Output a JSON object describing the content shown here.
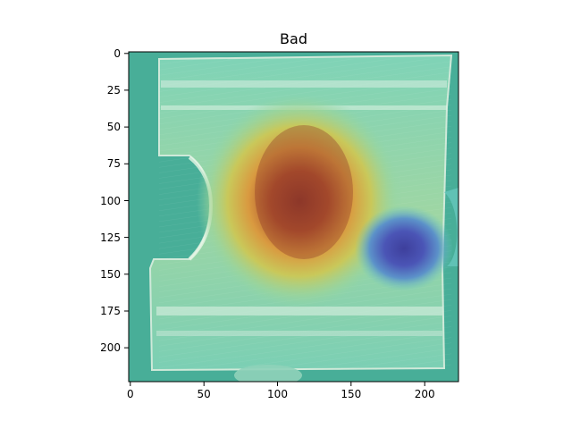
{
  "figure": {
    "title": "Bad",
    "x_ticks": [
      "0",
      "50",
      "100",
      "150",
      "200"
    ],
    "y_ticks": [
      "0",
      "25",
      "50",
      "75",
      "100",
      "125",
      "150",
      "175",
      "200"
    ],
    "image_extent": [
      0,
      224,
      224,
      0
    ],
    "overlay": "heatmap (jet colormap) blended over a photo of a metal part"
  }
}
